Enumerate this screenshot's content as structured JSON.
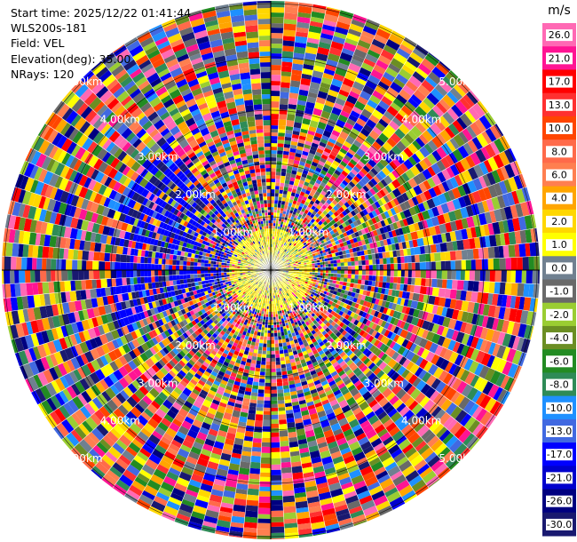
{
  "info": {
    "start_time": "Start time: 2025/12/22 01:41:44",
    "instrument": "WLS200s-181",
    "field": "Field: VEL",
    "elevation": "Elevation(deg): 35.00",
    "nrays": "NRays: 120"
  },
  "chart_data": {
    "type": "heatmap",
    "projection": "polar-ppi",
    "field": "VEL",
    "nrays": 120,
    "max_range_km": 5.0,
    "grid": true,
    "range_ring_labels": [
      "1.00km",
      "2.00km",
      "3.00km",
      "4.00km",
      "5.00km"
    ],
    "colorbar": {
      "unit": "m/s",
      "ticks": [
        "26.0",
        "21.0",
        "17.0",
        "13.0",
        "10.0",
        "8.0",
        "6.0",
        "4.0",
        "2.0",
        "1.0",
        "0.0",
        "-1.0",
        "-2.0",
        "-4.0",
        "-6.0",
        "-8.0",
        "-10.0",
        "-13.0",
        "-17.0",
        "-21.0",
        "-26.0",
        "-30.0"
      ],
      "colors": [
        "#ff69b4",
        "#ff1493",
        "#ff0000",
        "#ff3030",
        "#ff4500",
        "#ff6a4a",
        "#ff7f50",
        "#ffa500",
        "#ffd700",
        "#ffff00",
        "#708090",
        "#696969",
        "#9acd32",
        "#6b8e23",
        "#228b22",
        "#2e8b57",
        "#1e90ff",
        "#4169e1",
        "#0000ff",
        "#0000cd",
        "#000080",
        "#191970"
      ]
    }
  }
}
